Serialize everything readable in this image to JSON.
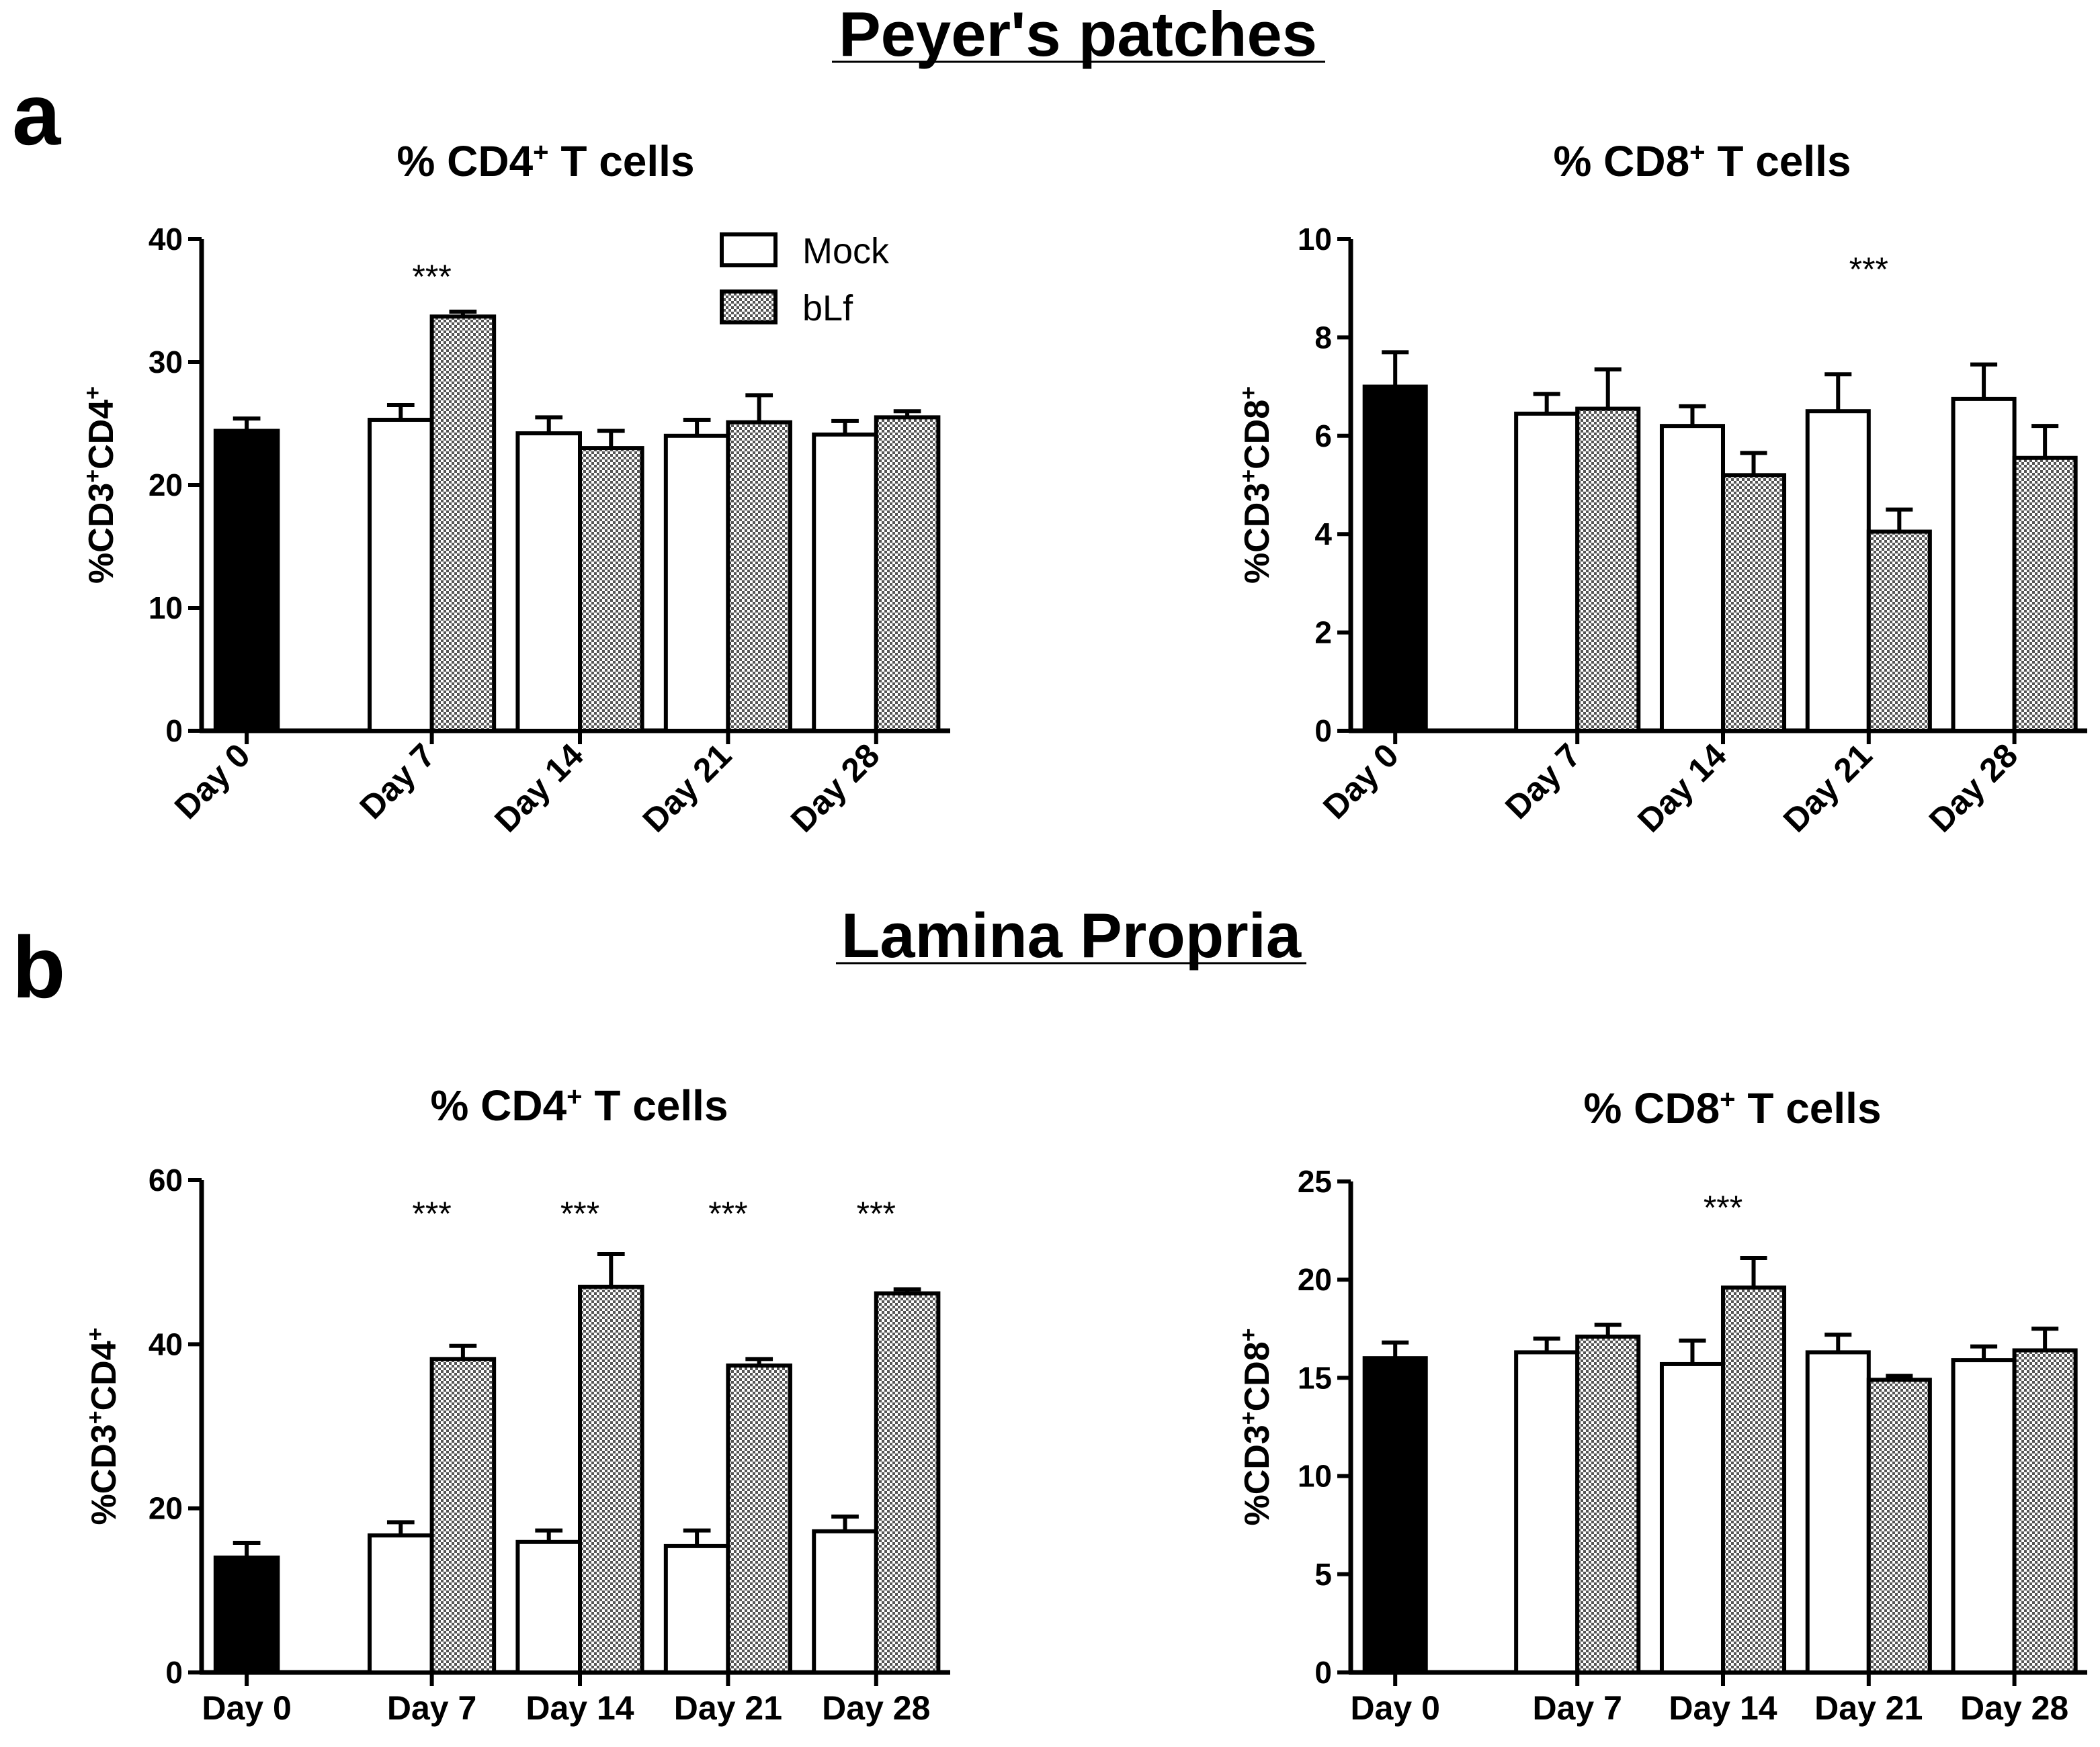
{
  "section_a": {
    "letter": "a",
    "title": "Peyer's patches"
  },
  "section_b": {
    "letter": "b",
    "title": "Lamina Propria"
  },
  "legend": [
    {
      "label": "Mock",
      "fill": "white"
    },
    {
      "label": "bLf",
      "fill": "checker"
    }
  ],
  "colors": {
    "control": "#000000",
    "mock": "#ffffff",
    "blf_pattern": "#b8b8b8",
    "axis": "#000000"
  },
  "chart_data": [
    {
      "type": "bar",
      "panel": "a-left",
      "title_main": "% CD4",
      "title_sup": "+",
      "title_rest": " T cells",
      "ylabel_parts": [
        "%CD3",
        "+",
        "CD4",
        "+"
      ],
      "ylim": [
        0,
        40
      ],
      "yticks": [
        0,
        10,
        20,
        30,
        40
      ],
      "categories": [
        "Day 0",
        "Day 7",
        "Day 14",
        "Day 21",
        "Day 28"
      ],
      "x_rotated": true,
      "series": [
        {
          "name": "Mock",
          "values": [
            24.4,
            25.3,
            24.2,
            24.0,
            24.1
          ],
          "errors": [
            1.0,
            1.2,
            1.3,
            1.3,
            1.1
          ]
        },
        {
          "name": "bLf",
          "values": [
            null,
            33.7,
            23.0,
            25.1,
            25.5
          ],
          "errors": [
            null,
            0.4,
            1.4,
            2.2,
            0.5
          ]
        }
      ],
      "significance": [
        {
          "category": "Day 7",
          "label": "***",
          "y": 37
        }
      ]
    },
    {
      "type": "bar",
      "panel": "a-right",
      "title_main": "% CD8",
      "title_sup": "+",
      "title_rest": " T cells",
      "ylabel_parts": [
        "%CD3",
        "+",
        "CD8",
        "+"
      ],
      "ylim": [
        0,
        10
      ],
      "yticks": [
        0,
        2,
        4,
        6,
        8,
        10
      ],
      "categories": [
        "Day 0",
        "Day 7",
        "Day 14",
        "Day 21",
        "Day 28"
      ],
      "x_rotated": true,
      "series": [
        {
          "name": "Mock",
          "values": [
            7.0,
            6.45,
            6.2,
            6.5,
            6.75
          ],
          "errors": [
            0.7,
            0.4,
            0.4,
            0.75,
            0.7
          ]
        },
        {
          "name": "bLf",
          "values": [
            null,
            6.55,
            5.2,
            4.05,
            5.55
          ],
          "errors": [
            null,
            0.8,
            0.45,
            0.45,
            0.65
          ]
        }
      ],
      "significance": [
        {
          "category": "Day 21",
          "label": "***",
          "y": 9.4
        }
      ]
    },
    {
      "type": "bar",
      "panel": "b-left",
      "title_main": "% CD4",
      "title_sup": "+",
      "title_rest": " T cells",
      "ylabel_parts": [
        "%CD3",
        "+",
        "CD4",
        "+"
      ],
      "ylim": [
        0,
        60
      ],
      "yticks": [
        0,
        20,
        40,
        60
      ],
      "categories": [
        "Day 0",
        "Day 7",
        "Day 14",
        "Day 21",
        "Day 28"
      ],
      "x_rotated": false,
      "series": [
        {
          "name": "Mock",
          "values": [
            14.0,
            16.7,
            15.9,
            15.4,
            17.2
          ],
          "errors": [
            1.8,
            1.6,
            1.4,
            1.9,
            1.8
          ]
        },
        {
          "name": "bLf",
          "values": [
            null,
            38.2,
            47.0,
            37.4,
            46.2
          ],
          "errors": [
            null,
            1.6,
            4.0,
            0.8,
            0.5
          ]
        }
      ],
      "significance": [
        {
          "category": "Day 7",
          "label": "***",
          "y": 56
        },
        {
          "category": "Day 14",
          "label": "***",
          "y": 56
        },
        {
          "category": "Day 21",
          "label": "***",
          "y": 56
        },
        {
          "category": "Day 28",
          "label": "***",
          "y": 56
        }
      ]
    },
    {
      "type": "bar",
      "panel": "b-right",
      "title_main": "% CD8",
      "title_sup": "+",
      "title_rest": " T cells",
      "ylabel_parts": [
        "%CD3",
        "+",
        "CD8",
        "+"
      ],
      "ylim": [
        0,
        25
      ],
      "yticks": [
        0,
        5,
        10,
        15,
        20,
        25
      ],
      "categories": [
        "Day 0",
        "Day 7",
        "Day 14",
        "Day 21",
        "Day 28"
      ],
      "x_rotated": false,
      "series": [
        {
          "name": "Mock",
          "values": [
            16.0,
            16.3,
            15.7,
            16.3,
            15.9
          ],
          "errors": [
            0.8,
            0.7,
            1.2,
            0.9,
            0.7
          ]
        },
        {
          "name": "bLf",
          "values": [
            null,
            17.1,
            19.6,
            14.9,
            16.4
          ],
          "errors": [
            null,
            0.6,
            1.5,
            0.2,
            1.1
          ]
        }
      ],
      "significance": [
        {
          "category": "Day 14",
          "label": "***",
          "y": 23.7
        }
      ]
    }
  ]
}
